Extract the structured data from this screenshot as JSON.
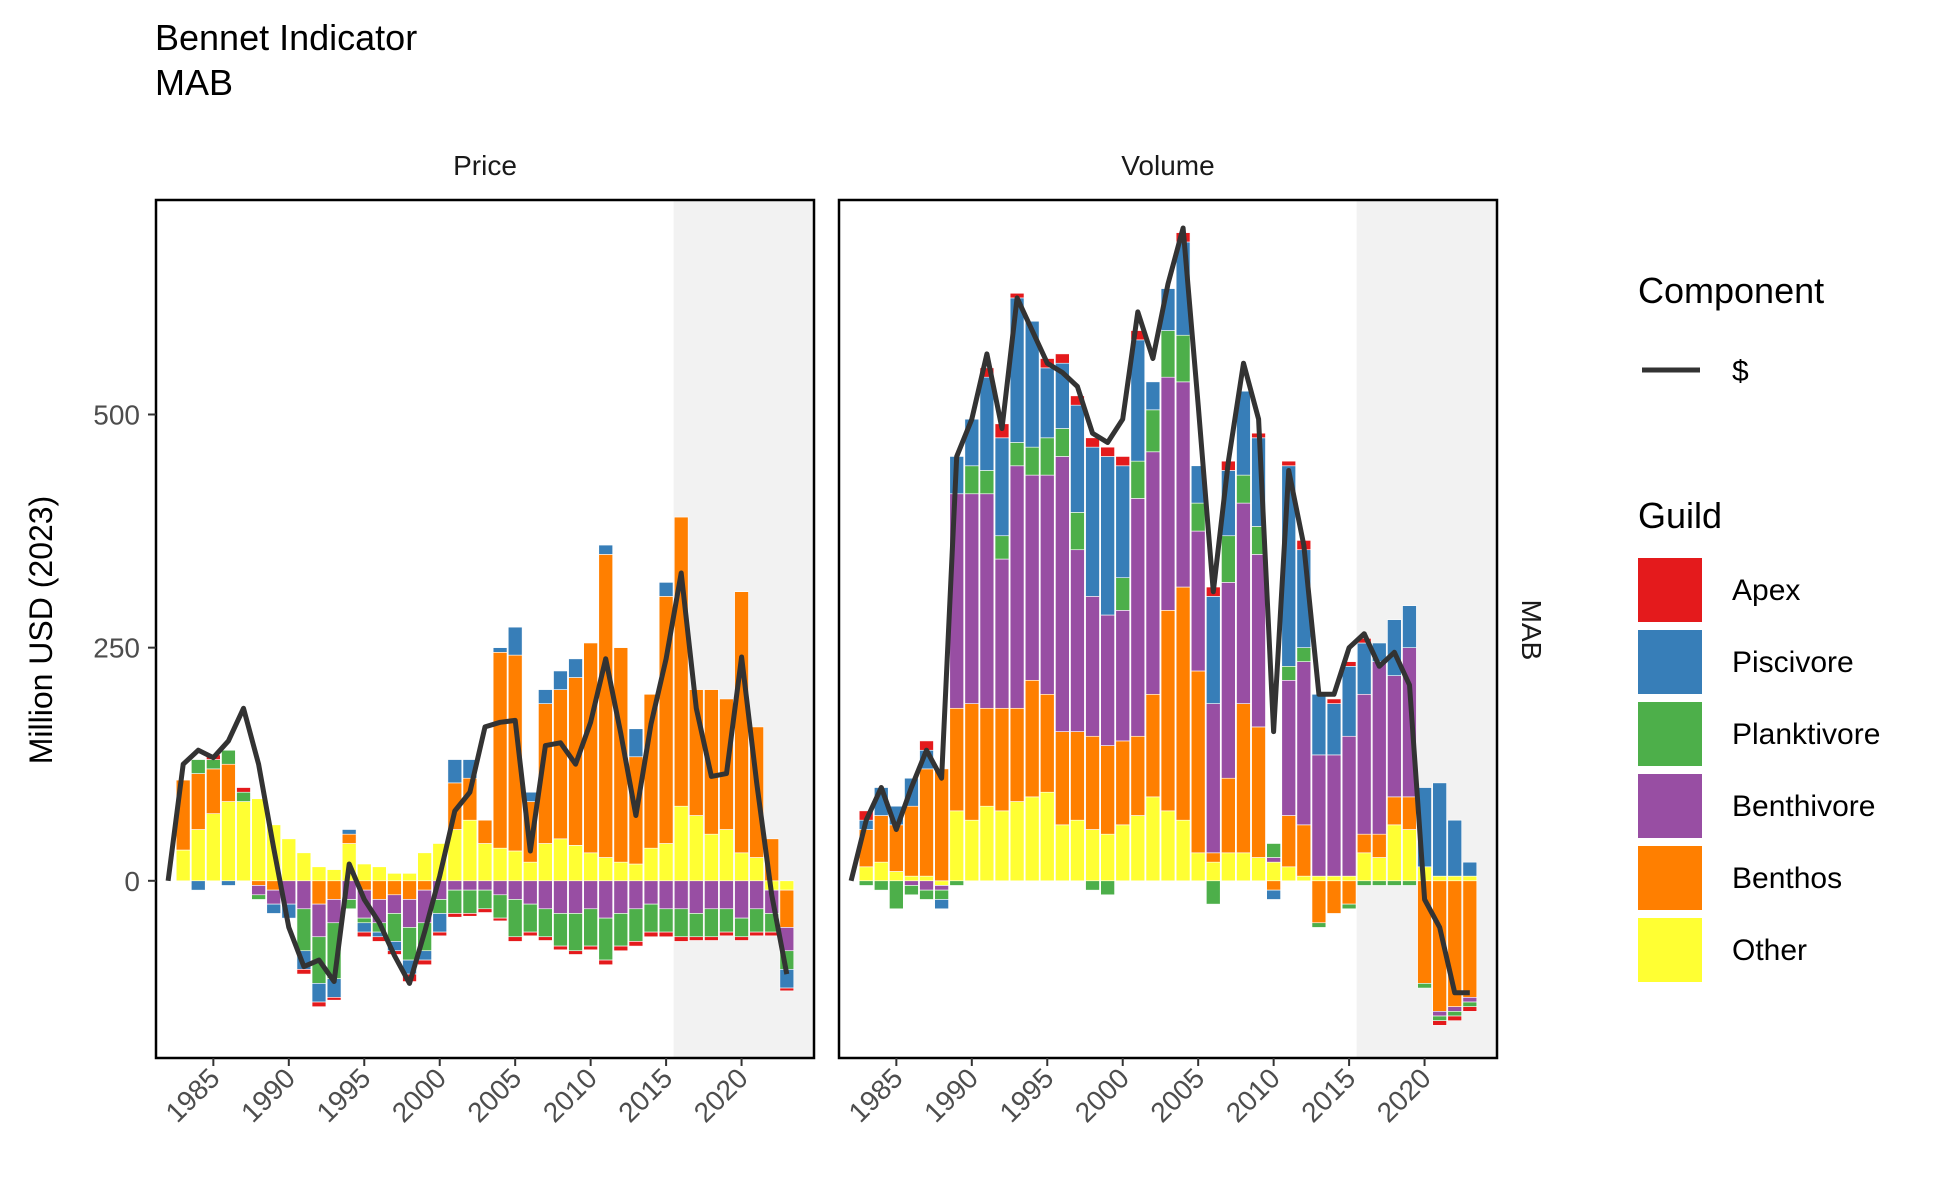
{
  "title": "Bennet Indicator",
  "subtitle": "MAB",
  "ylabel": "Million USD (2023)",
  "facet_row_label": "MAB",
  "legend": {
    "component_title": "Component",
    "component_entries": [
      {
        "label": "$",
        "color": "#333333"
      }
    ],
    "guild_title": "Guild",
    "guild_entries": [
      {
        "label": "Apex",
        "color": "#E41A1C"
      },
      {
        "label": "Piscivore",
        "color": "#377EB8"
      },
      {
        "label": "Planktivore",
        "color": "#4DAF4A"
      },
      {
        "label": "Benthivore",
        "color": "#984EA3"
      },
      {
        "label": "Benthos",
        "color": "#FF7F00"
      },
      {
        "label": "Other",
        "color": "#FFFF33"
      }
    ]
  },
  "chart_data": {
    "type": "bar",
    "stacked": "diverging",
    "x_years": [
      1982,
      1983,
      1984,
      1985,
      1986,
      1987,
      1988,
      1989,
      1990,
      1991,
      1992,
      1993,
      1994,
      1995,
      1996,
      1997,
      1998,
      1999,
      2000,
      2001,
      2002,
      2003,
      2004,
      2005,
      2006,
      2007,
      2008,
      2009,
      2010,
      2011,
      2012,
      2013,
      2014,
      2015,
      2016,
      2017,
      2018,
      2019,
      2020,
      2021,
      2022,
      2023
    ],
    "x_ticks": [
      1985,
      1990,
      1995,
      2000,
      2005,
      2010,
      2015,
      2020
    ],
    "y_ticks": [
      0,
      250,
      500
    ],
    "ylim": [
      -190,
      730
    ],
    "xlim": [
      1981.2,
      2024.8
    ],
    "shaded_from": 2015.5,
    "guild_order": [
      "Other",
      "Benthos",
      "Benthivore",
      "Planktivore",
      "Piscivore",
      "Apex"
    ],
    "panels": [
      {
        "name": "Price",
        "line_name": "$",
        "line": [
          0,
          125,
          140,
          132,
          150,
          185,
          125,
          35,
          -50,
          -92,
          -85,
          -108,
          18,
          -20,
          -45,
          -80,
          -110,
          -55,
          5,
          75,
          95,
          165,
          170,
          172,
          32,
          145,
          148,
          125,
          170,
          238,
          158,
          70,
          168,
          238,
          330,
          185,
          112,
          115,
          240,
          105,
          -15,
          -100
        ],
        "series": {
          "Other": [
            0,
            33,
            55,
            72,
            85,
            85,
            88,
            60,
            45,
            30,
            15,
            12,
            40,
            18,
            15,
            8,
            8,
            30,
            40,
            55,
            65,
            40,
            35,
            32,
            20,
            40,
            45,
            38,
            30,
            25,
            20,
            18,
            35,
            40,
            80,
            70,
            50,
            55,
            30,
            25,
            -10,
            -10
          ],
          "Benthos": [
            0,
            75,
            60,
            48,
            40,
            0,
            -5,
            -10,
            0,
            0,
            -25,
            -20,
            10,
            -10,
            -20,
            -15,
            -20,
            -10,
            0,
            50,
            45,
            25,
            210,
            210,
            65,
            150,
            160,
            180,
            225,
            325,
            230,
            115,
            165,
            265,
            310,
            135,
            155,
            140,
            280,
            140,
            45,
            -40
          ],
          "Benthivore": [
            0,
            0,
            0,
            0,
            0,
            0,
            -10,
            -15,
            -25,
            -30,
            -35,
            -25,
            -20,
            -30,
            -25,
            -20,
            -30,
            -35,
            -20,
            -10,
            -10,
            -10,
            -15,
            -20,
            -25,
            -30,
            -35,
            -35,
            -30,
            -40,
            -35,
            -30,
            -25,
            -30,
            -30,
            -35,
            -30,
            -30,
            -40,
            -30,
            -25,
            -25
          ],
          "Planktivore": [
            0,
            0,
            15,
            10,
            15,
            10,
            -5,
            0,
            0,
            -45,
            -50,
            -60,
            -10,
            -5,
            -10,
            -30,
            -35,
            -30,
            -15,
            -25,
            -25,
            -20,
            -25,
            -40,
            -30,
            -30,
            -35,
            -40,
            -40,
            -45,
            -35,
            -35,
            -30,
            -25,
            -30,
            -25,
            -30,
            -25,
            -20,
            -25,
            -20,
            -20
          ],
          "Piscivore": [
            0,
            0,
            -10,
            0,
            -5,
            0,
            0,
            -10,
            -15,
            -20,
            -20,
            -20,
            5,
            -10,
            -5,
            -10,
            -15,
            -10,
            -20,
            25,
            20,
            0,
            5,
            30,
            10,
            15,
            20,
            20,
            0,
            10,
            0,
            30,
            0,
            15,
            0,
            0,
            0,
            0,
            0,
            0,
            0,
            -20
          ],
          "Apex": [
            0,
            0,
            0,
            5,
            0,
            5,
            0,
            0,
            0,
            -5,
            -5,
            -3,
            0,
            -5,
            -5,
            -4,
            -8,
            -5,
            -4,
            -4,
            -3,
            -4,
            -3,
            -5,
            -4,
            -4,
            -4,
            -4,
            -4,
            -5,
            -5,
            -5,
            -5,
            -5,
            -5,
            -4,
            -4,
            -4,
            -4,
            -4,
            -4,
            -3
          ]
        }
      },
      {
        "name": "Volume",
        "line_name": "$",
        "line": [
          0,
          65,
          100,
          55,
          100,
          140,
          110,
          455,
          495,
          565,
          485,
          625,
          590,
          555,
          545,
          530,
          480,
          470,
          495,
          610,
          560,
          640,
          700,
          510,
          310,
          450,
          555,
          495,
          160,
          440,
          360,
          200,
          200,
          250,
          265,
          230,
          245,
          210,
          -20,
          -50,
          -120,
          -120
        ],
        "series": {
          "Other": [
            0,
            15,
            20,
            10,
            5,
            5,
            -5,
            75,
            65,
            80,
            75,
            85,
            90,
            95,
            60,
            65,
            55,
            50,
            60,
            70,
            90,
            75,
            65,
            30,
            20,
            30,
            30,
            25,
            20,
            15,
            5,
            5,
            5,
            5,
            30,
            25,
            60,
            55,
            15,
            5,
            5,
            5
          ],
          "Benthos": [
            0,
            40,
            50,
            50,
            75,
            115,
            120,
            110,
            125,
            105,
            110,
            100,
            125,
            105,
            100,
            95,
            100,
            95,
            90,
            85,
            110,
            215,
            250,
            195,
            10,
            80,
            160,
            140,
            -10,
            55,
            55,
            -45,
            -35,
            -25,
            20,
            25,
            30,
            35,
            -110,
            -140,
            -135,
            -125
          ],
          "Benthivore": [
            0,
            0,
            0,
            0,
            -5,
            -10,
            -5,
            230,
            225,
            230,
            160,
            260,
            220,
            235,
            295,
            195,
            150,
            140,
            140,
            255,
            260,
            250,
            220,
            150,
            160,
            210,
            215,
            185,
            5,
            145,
            175,
            130,
            130,
            150,
            150,
            185,
            130,
            160,
            0,
            -5,
            -5,
            -5
          ],
          "Planktivore": [
            0,
            -5,
            -10,
            -30,
            -10,
            -10,
            -10,
            -5,
            30,
            25,
            25,
            25,
            30,
            40,
            30,
            40,
            -10,
            -15,
            35,
            40,
            45,
            50,
            50,
            30,
            -25,
            50,
            30,
            30,
            15,
            15,
            15,
            -5,
            0,
            -5,
            -5,
            -5,
            -5,
            -5,
            -5,
            -5,
            -5,
            -5
          ],
          "Piscivore": [
            0,
            10,
            30,
            20,
            30,
            20,
            -10,
            40,
            50,
            100,
            105,
            155,
            135,
            75,
            70,
            115,
            160,
            170,
            120,
            130,
            30,
            45,
            100,
            40,
            115,
            70,
            90,
            95,
            -10,
            215,
            105,
            65,
            55,
            75,
            55,
            20,
            60,
            45,
            85,
            100,
            60,
            15
          ],
          "Apex": [
            0,
            10,
            0,
            0,
            0,
            10,
            0,
            0,
            0,
            10,
            15,
            5,
            0,
            10,
            10,
            10,
            10,
            10,
            10,
            10,
            0,
            0,
            10,
            0,
            10,
            10,
            0,
            5,
            0,
            5,
            10,
            0,
            5,
            5,
            5,
            0,
            0,
            0,
            0,
            -5,
            -5,
            -5
          ]
        }
      }
    ]
  }
}
